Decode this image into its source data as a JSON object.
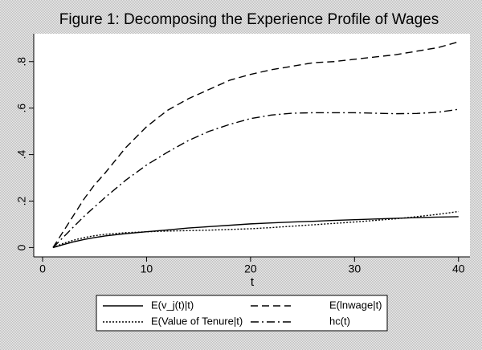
{
  "chart_data": {
    "type": "line",
    "title": "Figure 1: Decomposing the Experience Profile of Wages",
    "x_label": "t",
    "x": [
      1,
      2,
      3,
      4,
      5,
      6,
      8,
      10,
      12,
      14,
      16,
      18,
      20,
      22,
      24,
      26,
      28,
      30,
      32,
      34,
      36,
      38,
      40
    ],
    "series": [
      {
        "name": "E(v_j(t)|t)",
        "color": "#000000",
        "dash": "solid",
        "values": [
          0,
          0.013,
          0.025,
          0.035,
          0.043,
          0.05,
          0.06,
          0.068,
          0.076,
          0.084,
          0.09,
          0.096,
          0.102,
          0.106,
          0.11,
          0.113,
          0.117,
          0.12,
          0.123,
          0.126,
          0.129,
          0.131,
          0.133
        ]
      },
      {
        "name": "E(lnwage|t)",
        "color": "#000000",
        "dash": "dashed",
        "values": [
          0,
          0.07,
          0.14,
          0.21,
          0.27,
          0.32,
          0.43,
          0.52,
          0.59,
          0.64,
          0.68,
          0.72,
          0.745,
          0.765,
          0.78,
          0.795,
          0.8,
          0.81,
          0.82,
          0.83,
          0.845,
          0.86,
          0.885
        ]
      },
      {
        "name": "E(Value of Tenure|t)",
        "color": "#000000",
        "dash": "dotted",
        "values": [
          0,
          0.018,
          0.032,
          0.043,
          0.051,
          0.057,
          0.064,
          0.068,
          0.071,
          0.073,
          0.075,
          0.078,
          0.081,
          0.086,
          0.092,
          0.098,
          0.104,
          0.11,
          0.117,
          0.124,
          0.133,
          0.143,
          0.155
        ]
      },
      {
        "name": "hc(t)",
        "color": "#000000",
        "dash": "dashdot",
        "values": [
          0,
          0.045,
          0.09,
          0.135,
          0.175,
          0.215,
          0.29,
          0.355,
          0.41,
          0.46,
          0.5,
          0.53,
          0.555,
          0.57,
          0.578,
          0.58,
          0.58,
          0.58,
          0.578,
          0.576,
          0.577,
          0.582,
          0.595
        ]
      }
    ],
    "xlim": [
      -0.85,
      41.1
    ],
    "xticks": [
      0,
      10,
      20,
      30,
      40
    ],
    "ylim": [
      -0.04,
      0.92
    ],
    "yticks": [
      0,
      {
        "value": 0.2,
        "label": ".2"
      },
      {
        "value": 0.4,
        "label": ".4"
      },
      {
        "value": 0.6,
        "label": ".6"
      },
      {
        "value": 0.8,
        "label": ".8"
      }
    ],
    "grid": false
  }
}
